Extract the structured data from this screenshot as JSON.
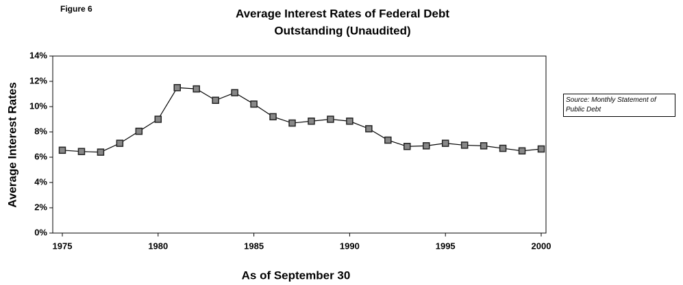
{
  "chart_data": {
    "type": "line",
    "title": [
      "Average Interest Rates of Federal Debt",
      "Outstanding (Unaudited)"
    ],
    "figure_label": "Figure 6",
    "annotation": "Source:  Monthly Statement of Public Debt",
    "x_label": "As of September 30",
    "y_label": "Average Interest Rates",
    "x": [
      1975,
      1976,
      1977,
      1978,
      1979,
      1980,
      1981,
      1982,
      1983,
      1984,
      1985,
      1986,
      1987,
      1988,
      1989,
      1990,
      1991,
      1992,
      1993,
      1994,
      1995,
      1996,
      1997,
      1998,
      1999,
      2000
    ],
    "series": [
      {
        "name": "Average Interest Rates",
        "color": "#000000",
        "values": [
          6.55,
          6.45,
          6.4,
          7.1,
          8.05,
          9.0,
          11.5,
          11.4,
          10.5,
          11.1,
          10.2,
          9.2,
          8.7,
          8.85,
          9.0,
          8.85,
          8.25,
          7.35,
          6.85,
          6.9,
          7.1,
          6.95,
          6.9,
          6.7,
          6.5,
          6.65
        ]
      }
    ],
    "xlim": [
      1974.5,
      2000.25
    ],
    "xticks": [
      1975,
      1980,
      1985,
      1990,
      1995,
      2000
    ],
    "ylim": [
      0,
      14
    ],
    "yticks": [
      {
        "value": 0,
        "label": "0%"
      },
      {
        "value": 2,
        "label": "2%"
      },
      {
        "value": 4,
        "label": "4%"
      },
      {
        "value": 6,
        "label": "6%"
      },
      {
        "value": 8,
        "label": "8%"
      },
      {
        "value": 10,
        "label": "10%"
      },
      {
        "value": 12,
        "label": "12%"
      },
      {
        "value": 14,
        "label": "14%"
      }
    ],
    "grid": false
  }
}
